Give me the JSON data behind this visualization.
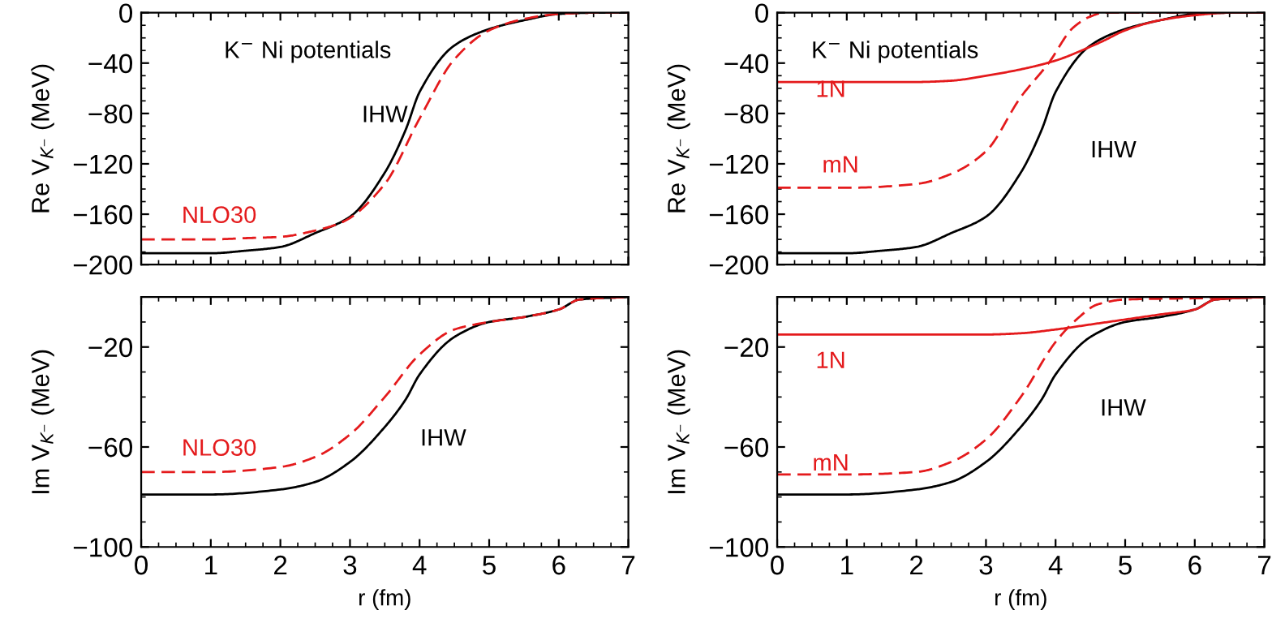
{
  "chart_data": [
    {
      "type": "line",
      "title": "K$^{−}$ Ni potentials",
      "ylabel": "Re V$_{K⁻}$ (MeV)",
      "xlim": [
        0,
        7
      ],
      "xticks": [
        0,
        1,
        2,
        3,
        4,
        5,
        6,
        7
      ],
      "ylim": [
        -200,
        0
      ],
      "yticks": [
        -200,
        -160,
        -120,
        -80,
        -40,
        0
      ],
      "tick_labels": "y",
      "grid": false,
      "legend": false,
      "series": [
        {
          "name": "IHW",
          "color": "#000000",
          "line_style": "solid",
          "x": [
            0,
            1,
            1.5,
            2,
            2.5,
            3,
            3.5,
            3.8,
            4,
            4.5,
            5,
            5.5,
            6,
            6.5,
            7
          ],
          "values": [
            -191,
            -191,
            -189,
            -186,
            -175,
            -162,
            -127,
            -93,
            -63,
            -26,
            -13,
            -6,
            -1,
            0,
            0
          ]
        },
        {
          "name": "NLO30",
          "color": "#e41a1c",
          "line_style": "dashed",
          "x": [
            0,
            1,
            1.5,
            2,
            2.5,
            2.9,
            3.5,
            4,
            4.5,
            5,
            5.5,
            6,
            6.5,
            7
          ],
          "values": [
            -180,
            -180,
            -179,
            -178,
            -173,
            -166,
            -136,
            -84,
            -37,
            -14,
            -5,
            -1,
            0,
            0
          ]
        }
      ]
    },
    {
      "type": "line",
      "title": "K$^{−}$ Ni potentials",
      "ylabel": "Re V$_{K⁻}$ (MeV)",
      "xlim": [
        0,
        7
      ],
      "xticks": [
        0,
        1,
        2,
        3,
        4,
        5,
        6,
        7
      ],
      "ylim": [
        -200,
        0
      ],
      "yticks": [
        -200,
        -160,
        -120,
        -80,
        -40,
        0
      ],
      "tick_labels": "y",
      "grid": false,
      "legend": false,
      "series": [
        {
          "name": "IHW",
          "color": "#000000",
          "line_style": "solid",
          "x": [
            0,
            1,
            1.5,
            2,
            2.5,
            3,
            3.5,
            3.8,
            4,
            4.5,
            5,
            5.5,
            6,
            6.5,
            7
          ],
          "values": [
            -191,
            -191,
            -189,
            -186,
            -175,
            -162,
            -127,
            -93,
            -63,
            -26,
            -13,
            -6,
            -1,
            0,
            0
          ]
        },
        {
          "name": "1N",
          "color": "#e41a1c",
          "line_style": "solid",
          "x": [
            0,
            1,
            2,
            2.5,
            3,
            3.5,
            4,
            4.5,
            4.7,
            5,
            5.5,
            6,
            6.5,
            7
          ],
          "values": [
            -55,
            -55,
            -55,
            -54,
            -50,
            -45,
            -38,
            -27,
            -22,
            -14,
            -6,
            -2,
            0,
            0
          ]
        },
        {
          "name": "mN",
          "color": "#e41a1c",
          "line_style": "dashed",
          "x": [
            0,
            1,
            2,
            2.5,
            3,
            3.5,
            3.9,
            4.25,
            4.5,
            4.7,
            5,
            6,
            7
          ],
          "values": [
            -139,
            -139,
            -136,
            -128,
            -110,
            -67,
            -40,
            -12,
            -3,
            0,
            0,
            0,
            0
          ]
        }
      ]
    },
    {
      "type": "line",
      "xlabel": "r (fm)",
      "ylabel": "Im V$_{K⁻}$ (MeV)",
      "xlim": [
        0,
        7
      ],
      "xticks": [
        0,
        1,
        2,
        3,
        4,
        5,
        6,
        7
      ],
      "ylim": [
        -100,
        0
      ],
      "yticks": [
        -100,
        -60,
        -20
      ],
      "grid": false,
      "legend": false,
      "series": [
        {
          "name": "IHW",
          "color": "#000000",
          "line_style": "solid",
          "x": [
            0,
            1,
            2,
            2.5,
            3,
            3.5,
            3.8,
            4,
            4.5,
            5,
            5.5,
            6,
            6.3,
            7
          ],
          "values": [
            -79,
            -79,
            -77,
            -74,
            -66,
            -52,
            -41,
            -31,
            -16,
            -10,
            -8,
            -5,
            -1,
            0
          ]
        },
        {
          "name": "NLO30",
          "color": "#e41a1c",
          "line_style": "dashed",
          "x": [
            0,
            1,
            2,
            2.5,
            3,
            3.5,
            4,
            4.5,
            5,
            5.5,
            6,
            6.3,
            7
          ],
          "values": [
            -70,
            -70,
            -68,
            -64,
            -55,
            -40,
            -23,
            -13,
            -10,
            -8,
            -5,
            -1,
            0
          ]
        }
      ]
    },
    {
      "type": "line",
      "xlabel": "r (fm)",
      "ylabel": "Im V$_{K⁻}$ (MeV)",
      "xlim": [
        0,
        7
      ],
      "xticks": [
        0,
        1,
        2,
        3,
        4,
        5,
        6,
        7
      ],
      "ylim": [
        -100,
        0
      ],
      "yticks": [
        -100,
        -60,
        -20
      ],
      "grid": false,
      "legend": false,
      "series": [
        {
          "name": "IHW",
          "color": "#000000",
          "line_style": "solid",
          "x": [
            0,
            1,
            2,
            2.5,
            3,
            3.5,
            3.8,
            4,
            4.5,
            5,
            5.5,
            6,
            6.3,
            7
          ],
          "values": [
            -79,
            -79,
            -77,
            -74,
            -66,
            -52,
            -41,
            -31,
            -16,
            -10,
            -8,
            -5,
            -1,
            0
          ]
        },
        {
          "name": "1N",
          "color": "#e41a1c",
          "line_style": "solid",
          "x": [
            0,
            1,
            2,
            3,
            3.5,
            4,
            4.5,
            5,
            5.5,
            6,
            6.3,
            7
          ],
          "values": [
            -15,
            -15,
            -15,
            -15,
            -14.5,
            -13,
            -11,
            -9,
            -7,
            -5,
            -1,
            0
          ]
        },
        {
          "name": "mN",
          "color": "#e41a1c",
          "line_style": "dashed",
          "x": [
            0,
            1,
            2,
            2.5,
            3,
            3.5,
            4,
            4.3,
            4.6,
            5,
            6,
            7
          ],
          "values": [
            -71,
            -71,
            -70,
            -66,
            -57,
            -40,
            -18,
            -9,
            -3,
            -1,
            -0.5,
            0
          ]
        }
      ]
    }
  ]
}
